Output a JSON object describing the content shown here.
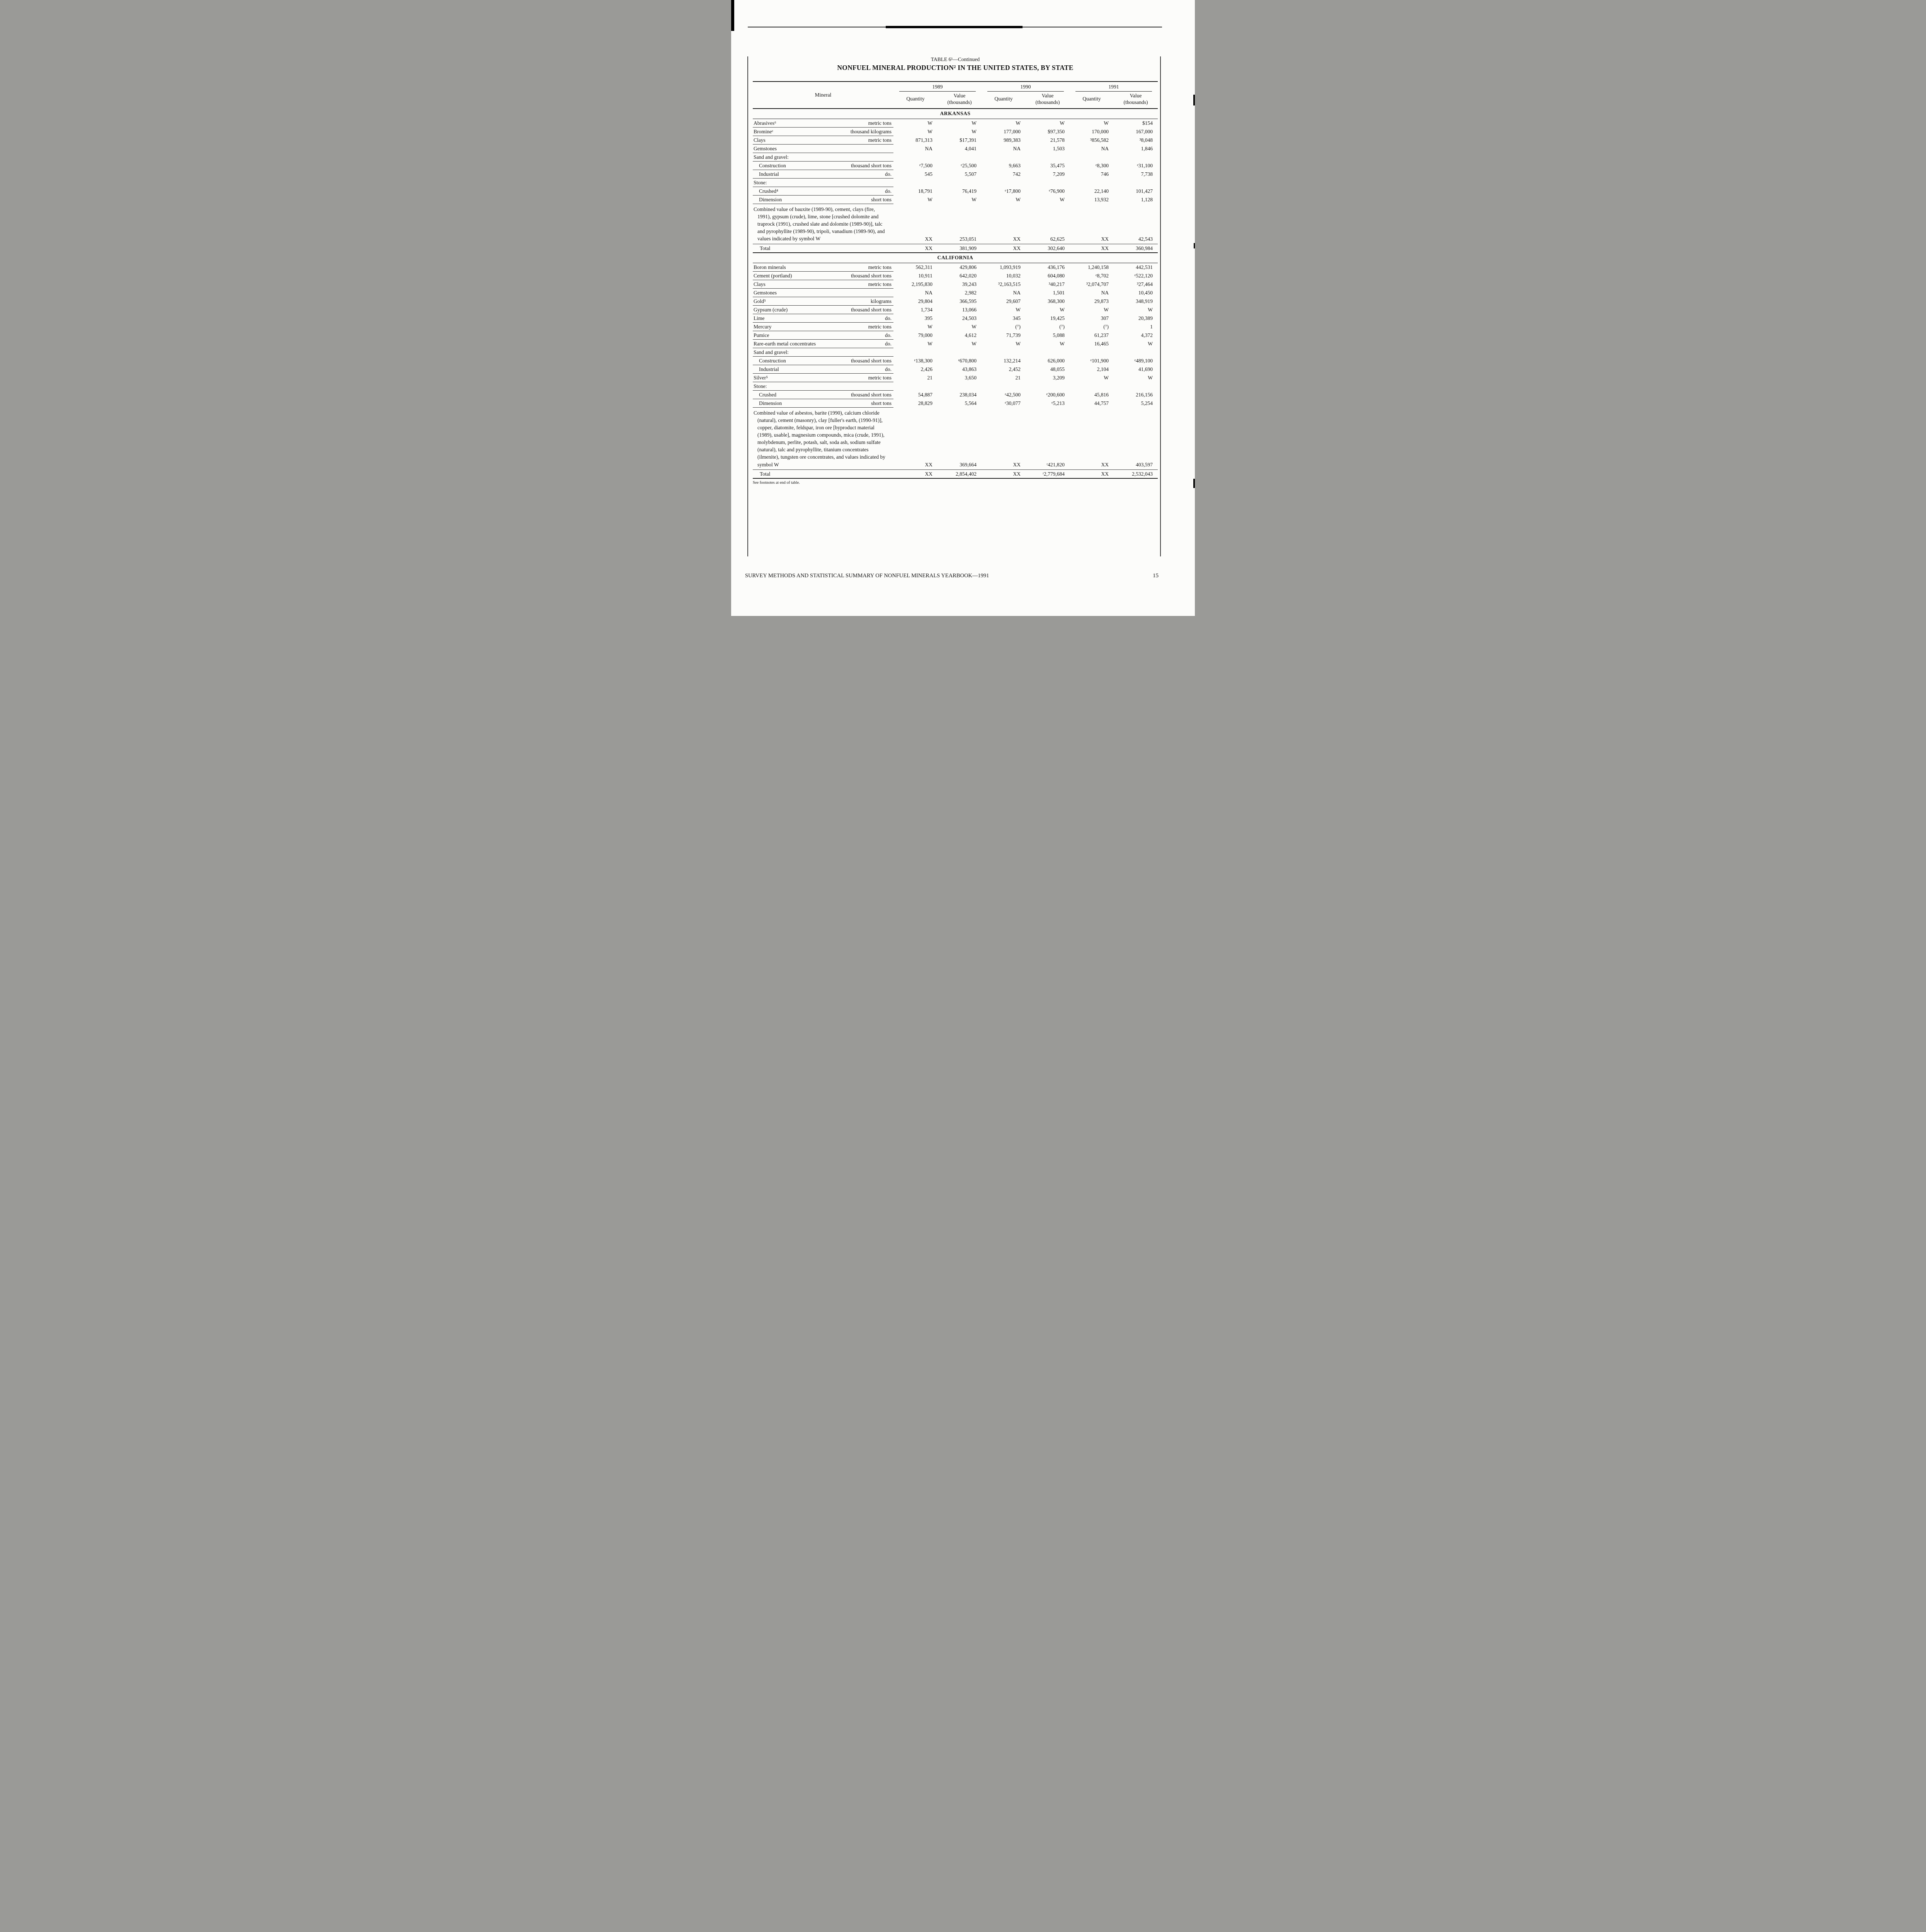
{
  "header": {
    "table_label": "TABLE 6¹—Continued",
    "title": "NONFUEL MINERAL PRODUCTION² IN THE UNITED STATES, BY STATE"
  },
  "table": {
    "columns": {
      "mineral": "Mineral",
      "quantity": "Quantity",
      "value": "Value",
      "thousands": "(thousands)",
      "years": [
        "1989",
        "1990",
        "1991"
      ]
    },
    "sections": [
      {
        "name": "ARKANSAS",
        "rows": [
          {
            "type": "data",
            "mineral": "Abrasives⁶",
            "unit": "metric tons",
            "values": [
              "W",
              "W",
              "W",
              "W",
              "W",
              "$154"
            ]
          },
          {
            "type": "data",
            "mineral": "Bromineᵉ",
            "unit": "thousand kilograms",
            "values": [
              "W",
              "W",
              "177,000",
              "$97,350",
              "170,000",
              "167,000"
            ]
          },
          {
            "type": "data",
            "mineral": "Clays",
            "unit": "metric tons",
            "values": [
              "871,313",
              "$17,391",
              "989,383",
              "21,578",
              "³856,582",
              "³8,048"
            ]
          },
          {
            "type": "data",
            "mineral": "Gemstones",
            "unit": "",
            "values": [
              "NA",
              "4,041",
              "NA",
              "1,503",
              "NA",
              "1,846"
            ]
          },
          {
            "type": "group",
            "mineral": "Sand and gravel:"
          },
          {
            "type": "data",
            "indent": true,
            "mineral": "Construction",
            "unit": "thousand short tons",
            "values": [
              "ᵉ7,500",
              "ᵉ25,500",
              "9,663",
              "35,475",
              "ᵉ8,300",
              "ᵉ31,100"
            ]
          },
          {
            "type": "data",
            "indent": true,
            "mineral": "Industrial",
            "unit": "do.",
            "values": [
              "545",
              "5,507",
              "742",
              "7,209",
              "746",
              "7,738"
            ]
          },
          {
            "type": "group",
            "mineral": "Stone:"
          },
          {
            "type": "data",
            "indent": true,
            "mineral": "Crushed⁴",
            "unit": "do.",
            "values": [
              "18,791",
              "76,419",
              "ᵉ17,800",
              "ᵉ76,900",
              "22,140",
              "101,427"
            ]
          },
          {
            "type": "data",
            "indent": true,
            "mineral": "Dimension",
            "unit": "short tons",
            "values": [
              "W",
              "W",
              "W",
              "W",
              "13,932",
              "1,128"
            ]
          },
          {
            "type": "combined",
            "mineral": "Combined value of bauxite (1989-90), cement, clays (fire, 1991), gypsum (crude), lime, stone [crushed dolomite and traprock (1991), crushed slate and dolomite (1989-90)], talc and pyrophyllite (1989-90), tripoli, vanadium (1989-90), and values indicated by symbol W",
            "values": [
              "XX",
              "253,051",
              "XX",
              "62,625",
              "XX",
              "42,543"
            ]
          },
          {
            "type": "total",
            "mineral": "Total",
            "values": [
              "XX",
              "381,909",
              "XX",
              "302,640",
              "XX",
              "360,984"
            ]
          }
        ]
      },
      {
        "name": "CALIFORNIA",
        "rows": [
          {
            "type": "data",
            "mineral": "Boron minerals",
            "unit": "metric tons",
            "values": [
              "562,311",
              "429,806",
              "1,093,919",
              "436,176",
              "1,240,158",
              "442,531"
            ]
          },
          {
            "type": "data",
            "mineral": "Cement (portland)",
            "unit": "thousand short tons",
            "values": [
              "10,911",
              "642,020",
              "10,032",
              "604,080",
              "ᵉ8,702",
              "ᵉ522,120"
            ]
          },
          {
            "type": "data",
            "mineral": "Clays",
            "unit": "metric tons",
            "values": [
              "2,195,830",
              "39,243",
              "³2,163,515",
              "³40,217",
              "³2,074,707",
              "³27,464"
            ]
          },
          {
            "type": "data",
            "mineral": "Gemstones",
            "unit": "",
            "values": [
              "NA",
              "2,982",
              "NA",
              "1,501",
              "NA",
              "10,450"
            ]
          },
          {
            "type": "data",
            "mineral": "Gold⁵",
            "unit": "kilograms",
            "values": [
              "29,804",
              "366,595",
              "29,607",
              "368,300",
              "29,873",
              "348,919"
            ]
          },
          {
            "type": "data",
            "mineral": "Gypsum (crude)",
            "unit": "thousand short tons",
            "values": [
              "1,734",
              "13,066",
              "W",
              "W",
              "W",
              "W"
            ]
          },
          {
            "type": "data",
            "mineral": "Lime",
            "unit": "do.",
            "values": [
              "395",
              "24,503",
              "345",
              "19,425",
              "307",
              "20,389"
            ]
          },
          {
            "type": "data",
            "mineral": "Mercury",
            "unit": "metric tons",
            "values": [
              "W",
              "W",
              "(⁷)",
              "(⁷)",
              "(⁷)",
              "1"
            ]
          },
          {
            "type": "data",
            "mineral": "Pumice",
            "unit": "do.",
            "values": [
              "79,000",
              "4,612",
              "71,739",
              "5,088",
              "61,237",
              "4,372"
            ]
          },
          {
            "type": "data",
            "mineral": "Rare-earth metal concentrates",
            "unit": "do.",
            "values": [
              "W",
              "W",
              "W",
              "W",
              "16,465",
              "W"
            ]
          },
          {
            "type": "group",
            "mineral": "Sand and gravel:"
          },
          {
            "type": "data",
            "indent": true,
            "mineral": "Construction",
            "unit": "thousand short tons",
            "values": [
              "ᵉ138,300",
              "ᵉ670,800",
              "132,214",
              "626,000",
              "ᵉ101,900",
              "ᵉ489,100"
            ]
          },
          {
            "type": "data",
            "indent": true,
            "mineral": "Industrial",
            "unit": "do.",
            "values": [
              "2,426",
              "43,863",
              "2,452",
              "48,055",
              "2,104",
              "41,690"
            ]
          },
          {
            "type": "data",
            "mineral": "Silver⁵",
            "unit": "metric tons",
            "values": [
              "21",
              "3,650",
              "21",
              "3,209",
              "W",
              "W"
            ]
          },
          {
            "type": "group",
            "mineral": "Stone:"
          },
          {
            "type": "data",
            "indent": true,
            "mineral": "Crushed",
            "unit": "thousand short tons",
            "values": [
              "54,887",
              "238,034",
              "ᵉ42,500",
              "ᵉ200,600",
              "45,816",
              "216,156"
            ]
          },
          {
            "type": "data",
            "indent": true,
            "mineral": "Dimension",
            "unit": "short tons",
            "values": [
              "28,829",
              "5,564",
              "ᵉ30,077",
              "ᵉ5,213",
              "44,757",
              "5,254"
            ]
          },
          {
            "type": "combined",
            "mineral": "Combined value of asbestos, barite (1990), calcium chloride (natural), cement (masonry), clay [fuller's earth, (1990-91)], copper, diatomite, feldspar, iron ore [byproduct material (1989), usable], magnesium compounds, mica (crude, 1991), molybdenum, perlite, potash, salt, soda ash, sodium sulfate (natural), talc and pyrophyllite, titanium concentrates (ilmenite), tungsten ore concentrates, and values indicated by symbol W",
            "values": [
              "XX",
              "369,664",
              "XX",
              "ʳ421,820",
              "XX",
              "403,597"
            ]
          },
          {
            "type": "total",
            "mineral": "Total",
            "values": [
              "XX",
              "2,854,402",
              "XX",
              "ʳ2,779,684",
              "XX",
              "2,532,043"
            ]
          }
        ]
      }
    ]
  },
  "footnote": "See footnotes at end of table.",
  "page_footer": {
    "left": "SURVEY METHODS AND STATISTICAL SUMMARY OF NONFUEL MINERALS YEARBOOK—1991",
    "page_number": "15"
  }
}
